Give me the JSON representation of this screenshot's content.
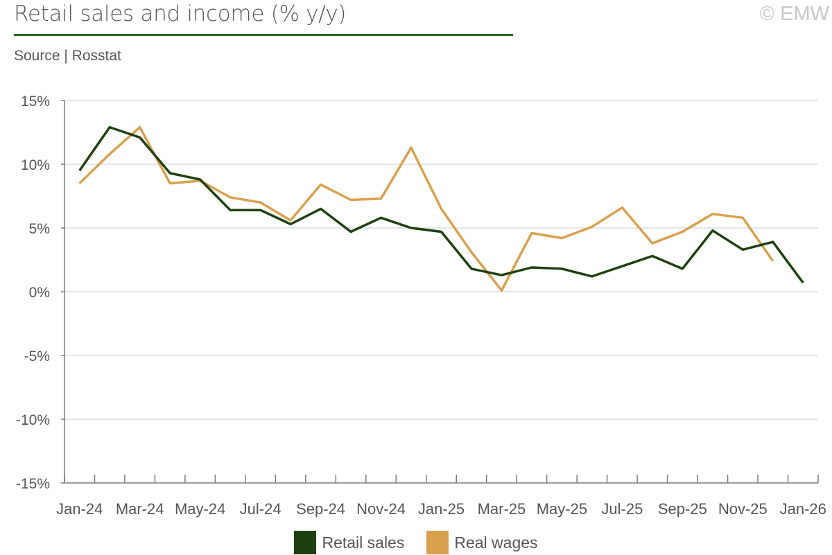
{
  "header": {
    "title": "Retail sales and income (% y/y)",
    "subtitle": "Source | Rosstat",
    "copyright": "© EMW"
  },
  "colors": {
    "retail": "#1e4010",
    "wages": "#d9a04e",
    "title_rule": "#2f6b2a",
    "grid": "#d5dde6",
    "axis": "#7a7a82"
  },
  "chart_data": {
    "type": "line",
    "title": "Retail sales and income (% y/y)",
    "xlabel": "",
    "ylabel": "",
    "ylim": [
      -15,
      15
    ],
    "yticks": [
      15,
      10,
      5,
      0,
      -5,
      -10,
      -15
    ],
    "ytick_labels": [
      "15%",
      "10%",
      "5%",
      "0%",
      "-5%",
      "-10%",
      "-15%"
    ],
    "grid": true,
    "legend_position": "bottom",
    "x": [
      "Jan-24",
      "Feb-24",
      "Mar-24",
      "Apr-24",
      "May-24",
      "Jun-24",
      "Jul-24",
      "Aug-24",
      "Sep-24",
      "Oct-24",
      "Nov-24",
      "Dec-24",
      "Jan-25",
      "Feb-25",
      "Mar-25",
      "Apr-25",
      "May-25",
      "Jun-25",
      "Jul-25",
      "Aug-25",
      "Sep-25",
      "Oct-25",
      "Nov-25",
      "Dec-25",
      "Jan-26"
    ],
    "x_tick_labels": [
      "Jan-24",
      "Mar-24",
      "May-24",
      "Jul-24",
      "Sep-24",
      "Nov-24",
      "Jan-25",
      "Mar-25",
      "May-25",
      "Jul-25",
      "Sep-25",
      "Nov-25",
      "Jan-26"
    ],
    "series": [
      {
        "name": "Retail sales",
        "color": "#1e4010",
        "values": [
          9.5,
          12.9,
          12.1,
          9.3,
          8.8,
          6.4,
          6.4,
          5.3,
          6.5,
          4.7,
          5.8,
          5.0,
          4.7,
          1.8,
          1.3,
          1.9,
          1.8,
          1.2,
          2.0,
          2.8,
          1.8,
          4.8,
          3.3,
          3.9,
          0.7
        ]
      },
      {
        "name": "Real wages",
        "color": "#d9a04e",
        "values": [
          8.5,
          10.8,
          12.9,
          8.5,
          8.7,
          7.4,
          7.0,
          5.6,
          8.4,
          7.2,
          7.3,
          11.3,
          6.5,
          3.1,
          0.1,
          4.6,
          4.2,
          5.1,
          6.6,
          3.8,
          4.7,
          6.1,
          5.8,
          2.4,
          null
        ]
      }
    ]
  }
}
